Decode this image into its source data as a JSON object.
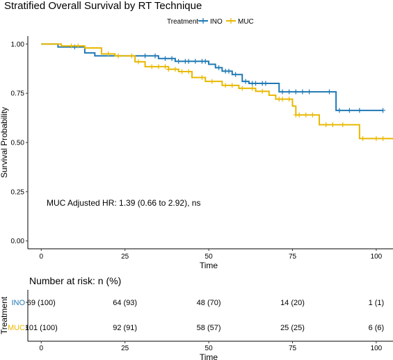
{
  "chart_data": [
    {
      "type": "line",
      "title": "Stratified Overall Survival by RT Technique",
      "xlabel": "Time",
      "ylabel": "Survival Probability",
      "xlim": [
        -4,
        105
      ],
      "ylim": [
        -0.04,
        1.04
      ],
      "x_ticks": [
        0,
        25,
        50,
        75,
        100
      ],
      "y_ticks": [
        0.0,
        0.25,
        0.5,
        0.75,
        1.0
      ],
      "x_tick_labels": [
        "0",
        "25",
        "50",
        "75",
        "100"
      ],
      "y_tick_labels": [
        "0.00",
        "0.25",
        "0.50",
        "0.75",
        "1.00"
      ],
      "legend": {
        "title": "Treatment",
        "position": "top",
        "entries": [
          {
            "name": "INO",
            "color": "#1F78B4"
          },
          {
            "name": "MUC",
            "color": "#E8B800"
          }
        ]
      },
      "annotation": "MUC Adjusted HR: 1.39 (0.66 to 2.92), ns",
      "series": [
        {
          "name": "INO",
          "color": "#1F78B4",
          "step_points": [
            [
              0,
              1.0
            ],
            [
              5,
              0.985
            ],
            [
              13,
              0.955
            ],
            [
              16,
              0.94
            ],
            [
              22,
              0.94
            ],
            [
              26,
              0.94
            ],
            [
              35,
              0.926
            ],
            [
              40,
              0.912
            ],
            [
              50,
              0.897
            ],
            [
              52,
              0.88
            ],
            [
              54,
              0.862
            ],
            [
              57,
              0.845
            ],
            [
              60,
              0.81
            ],
            [
              62,
              0.8
            ],
            [
              65,
              0.8
            ],
            [
              71,
              0.757
            ],
            [
              80,
              0.757
            ],
            [
              88,
              0.663
            ],
            [
              102,
              0.663
            ]
          ],
          "censor_x": [
            10,
            31,
            34,
            37,
            39,
            41,
            43,
            44,
            46,
            48,
            49,
            53,
            55,
            56,
            58,
            61,
            63,
            64,
            66,
            67,
            72,
            74,
            76,
            78,
            80,
            86,
            89,
            92,
            95,
            102
          ]
        },
        {
          "name": "MUC",
          "color": "#E8B800",
          "step_points": [
            [
              0,
              1.0
            ],
            [
              6,
              0.99
            ],
            [
              13,
              0.98
            ],
            [
              18,
              0.95
            ],
            [
              22,
              0.94
            ],
            [
              28,
              0.91
            ],
            [
              31,
              0.885
            ],
            [
              38,
              0.872
            ],
            [
              41,
              0.86
            ],
            [
              45,
              0.83
            ],
            [
              49,
              0.81
            ],
            [
              54,
              0.79
            ],
            [
              59,
              0.775
            ],
            [
              64,
              0.76
            ],
            [
              68,
              0.74
            ],
            [
              70,
              0.72
            ],
            [
              75,
              0.685
            ],
            [
              76,
              0.64
            ],
            [
              83,
              0.59
            ],
            [
              89,
              0.59
            ],
            [
              95,
              0.52
            ],
            [
              105,
              0.515
            ]
          ],
          "censor_x": [
            9,
            11,
            20,
            23,
            27,
            29,
            33,
            35,
            37,
            38,
            40,
            42,
            44,
            48,
            51,
            55,
            57,
            60,
            63,
            66,
            71,
            72,
            74,
            76,
            77,
            79,
            81,
            85,
            87,
            90,
            96,
            100,
            102
          ]
        }
      ]
    },
    {
      "type": "table",
      "title": "Number at risk: n (%)",
      "xlabel": "Time",
      "ylabel": "Treatment",
      "x_ticks": [
        0,
        25,
        50,
        75,
        100
      ],
      "x_tick_labels": [
        "0",
        "25",
        "50",
        "75",
        "100"
      ],
      "rows": [
        {
          "name": "INO",
          "color": "#1F78B4",
          "cells": [
            "69 (100)",
            "64 (93)",
            "48 (70)",
            "14 (20)",
            "1 (1)"
          ]
        },
        {
          "name": "MUC",
          "color": "#E8B800",
          "cells": [
            "101 (100)",
            "92 (91)",
            "58 (57)",
            "25 (25)",
            "6 (6)"
          ]
        }
      ]
    }
  ]
}
